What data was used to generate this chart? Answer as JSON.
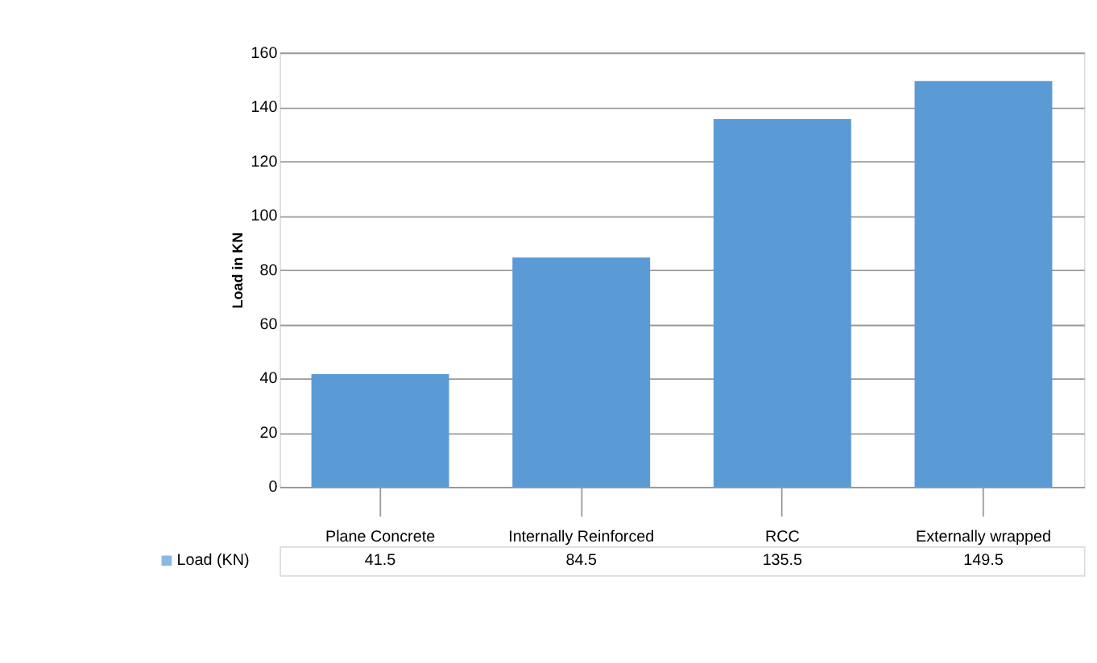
{
  "chart_data": {
    "type": "bar",
    "ylabel": "Load in KN",
    "categories": [
      "Plane Concrete",
      "Internally Reinforced",
      "RCC",
      "Externally wrapped"
    ],
    "series": [
      {
        "name": "Load (KN)",
        "color": "#5b9bd5",
        "values": [
          41.5,
          84.5,
          135.5,
          149.5
        ]
      }
    ],
    "ylim": [
      0,
      160
    ],
    "yticks": [
      0,
      20,
      40,
      60,
      80,
      100,
      120,
      140,
      160
    ],
    "grid": "y",
    "legend": "bottom",
    "data_labels": true
  }
}
